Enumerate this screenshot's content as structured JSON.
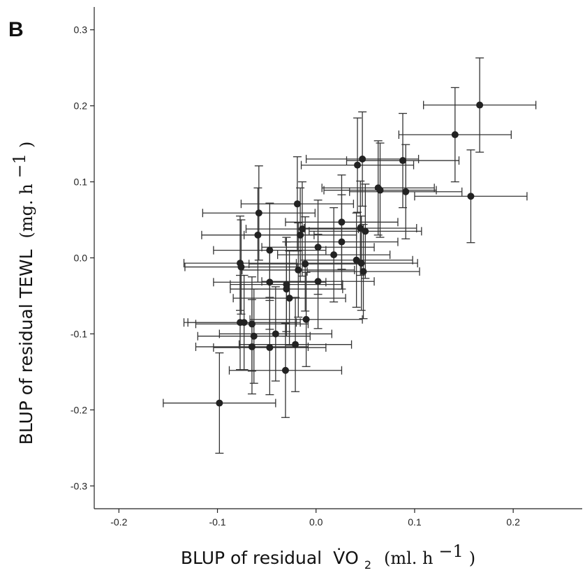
{
  "panel_label": "B",
  "chart_data": {
    "type": "scatter",
    "xlabel_main": "BLUP of residual",
    "xlabel_var": "V̇O",
    "xlabel_sub": "2",
    "xlabel_units": "(ml. h",
    "xlabel_exp": "−1",
    "xlabel_close": ")",
    "ylabel_main": "BLUP of residual TEWL",
    "ylabel_units": "(mg. h",
    "ylabel_exp": "−1",
    "ylabel_close": ")",
    "xlim": [
      -0.225,
      0.27
    ],
    "ylim": [
      -0.33,
      0.33
    ],
    "x_ticks": [
      -0.2,
      -0.1,
      0.0,
      0.1,
      0.2
    ],
    "x_tick_labels": [
      "-0.2",
      "-0.1",
      "0.0",
      "0.1",
      "0.2"
    ],
    "y_ticks": [
      -0.3,
      -0.2,
      -0.1,
      0.0,
      0.1,
      0.2,
      0.3
    ],
    "y_tick_labels": [
      "-0.3",
      "-0.2",
      "-0.1",
      "0.0",
      "0.1",
      "0.2",
      "0.3"
    ],
    "grid": false,
    "x_error": 0.057,
    "points": [
      {
        "x": 0.166,
        "y": 0.201,
        "yerr": 0.062
      },
      {
        "x": 0.141,
        "y": 0.162,
        "yerr": 0.062
      },
      {
        "x": 0.157,
        "y": 0.081,
        "yerr": 0.061
      },
      {
        "x": 0.088,
        "y": 0.128,
        "yerr": 0.062
      },
      {
        "x": 0.091,
        "y": 0.087,
        "yerr": 0.062
      },
      {
        "x": 0.065,
        "y": 0.089,
        "yerr": 0.062
      },
      {
        "x": 0.063,
        "y": 0.092,
        "yerr": 0.062
      },
      {
        "x": 0.047,
        "y": 0.13,
        "yerr": 0.062
      },
      {
        "x": 0.042,
        "y": 0.122,
        "yerr": 0.062
      },
      {
        "x": 0.05,
        "y": 0.035,
        "yerr": 0.062
      },
      {
        "x": 0.045,
        "y": 0.039,
        "yerr": 0.062
      },
      {
        "x": 0.041,
        "y": -0.003,
        "yerr": 0.062
      },
      {
        "x": 0.046,
        "y": -0.007,
        "yerr": 0.062
      },
      {
        "x": 0.048,
        "y": -0.018,
        "yerr": 0.062
      },
      {
        "x": 0.026,
        "y": 0.047,
        "yerr": 0.062
      },
      {
        "x": 0.026,
        "y": 0.021,
        "yerr": 0.062
      },
      {
        "x": 0.018,
        "y": 0.004,
        "yerr": 0.062
      },
      {
        "x": 0.002,
        "y": 0.014,
        "yerr": 0.062
      },
      {
        "x": 0.002,
        "y": -0.031,
        "yerr": 0.062
      },
      {
        "x": -0.011,
        "y": -0.008,
        "yerr": 0.062
      },
      {
        "x": -0.01,
        "y": -0.081,
        "yerr": 0.062
      },
      {
        "x": -0.014,
        "y": 0.038,
        "yerr": 0.062
      },
      {
        "x": -0.016,
        "y": 0.03,
        "yerr": 0.062
      },
      {
        "x": -0.019,
        "y": 0.071,
        "yerr": 0.062
      },
      {
        "x": -0.018,
        "y": -0.016,
        "yerr": 0.062
      },
      {
        "x": -0.021,
        "y": -0.114,
        "yerr": 0.062
      },
      {
        "x": -0.027,
        "y": -0.053,
        "yerr": 0.062
      },
      {
        "x": -0.03,
        "y": -0.035,
        "yerr": 0.062
      },
      {
        "x": -0.03,
        "y": -0.041,
        "yerr": 0.062
      },
      {
        "x": -0.031,
        "y": -0.148,
        "yerr": 0.062
      },
      {
        "x": -0.041,
        "y": -0.1,
        "yerr": 0.062
      },
      {
        "x": -0.047,
        "y": 0.01,
        "yerr": 0.062
      },
      {
        "x": -0.047,
        "y": -0.032,
        "yerr": 0.062
      },
      {
        "x": -0.047,
        "y": -0.118,
        "yerr": 0.062
      },
      {
        "x": -0.058,
        "y": 0.059,
        "yerr": 0.062
      },
      {
        "x": -0.059,
        "y": 0.03,
        "yerr": 0.062
      },
      {
        "x": -0.063,
        "y": -0.103,
        "yerr": 0.062
      },
      {
        "x": -0.065,
        "y": -0.087,
        "yerr": 0.062
      },
      {
        "x": -0.065,
        "y": -0.117,
        "yerr": 0.062
      },
      {
        "x": -0.073,
        "y": -0.085,
        "yerr": 0.062
      },
      {
        "x": -0.077,
        "y": -0.085,
        "yerr": 0.062
      },
      {
        "x": -0.077,
        "y": -0.007,
        "yerr": 0.062
      },
      {
        "x": -0.076,
        "y": -0.012,
        "yerr": 0.062
      },
      {
        "x": -0.098,
        "y": -0.191,
        "yerr": 0.066
      }
    ]
  }
}
